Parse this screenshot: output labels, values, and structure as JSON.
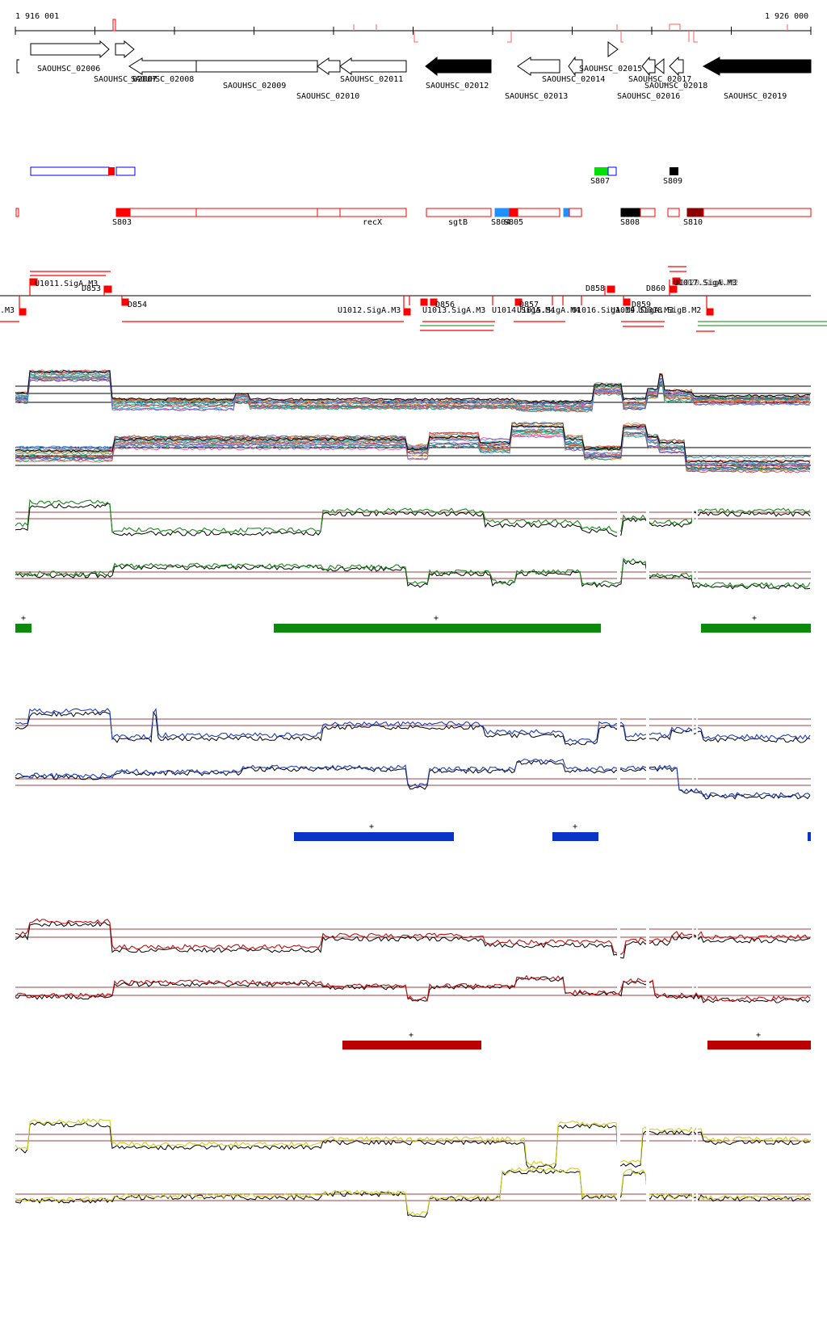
{
  "coordinates": {
    "start_label": "1 916 001",
    "end_label": "1 926 000"
  },
  "genes": [
    {
      "label": "SAOUHSC_02006"
    },
    {
      "label": "SAOUHSC_02007"
    },
    {
      "label": "SAOUHSC_02008"
    },
    {
      "label": "SAOUHSC_02009"
    },
    {
      "label": "SAOUHSC_02010"
    },
    {
      "label": "SAOUHSC_02011"
    },
    {
      "label": "SAOUHSC_02012"
    },
    {
      "label": "SAOUHSC_02013"
    },
    {
      "label": "SAOUHSC_02014"
    },
    {
      "label": "SAOUHSC_02015"
    },
    {
      "label": "SAOUHSC_02016"
    },
    {
      "label": "SAOUHSC_02017"
    },
    {
      "label": "SAOUHSC_02018"
    },
    {
      "label": "SAOUHSC_02019"
    }
  ],
  "segments_top": [
    {
      "label": "S807"
    },
    {
      "label": "S809"
    }
  ],
  "segments_bottom": [
    {
      "label": "S803"
    },
    {
      "label": "recX"
    },
    {
      "label": "sgtB"
    },
    {
      "label": "S804"
    },
    {
      "label": "S805"
    },
    {
      "label": "S808"
    },
    {
      "label": "S810"
    }
  ],
  "upstream_labels": [
    {
      "label": "U1011.SigA.M3"
    },
    {
      "label": "D853"
    },
    {
      "label": "D854"
    },
    {
      "label": ".M3"
    },
    {
      "label": "U1012.SigA.M3"
    },
    {
      "label": "D856"
    },
    {
      "label": "U1013.SigA.M3"
    },
    {
      "label": "D857"
    },
    {
      "label": "U1014.SigA.M4"
    },
    {
      "label": "U1015.SigA.M4"
    },
    {
      "label": "U1016.SigA.M4"
    },
    {
      "label": "D858"
    },
    {
      "label": "D859"
    },
    {
      "label": "U1019.SigA.M3"
    },
    {
      "label": "D860"
    },
    {
      "label": "U1017.SigA.M3"
    },
    {
      "label": "U1018.SigB.M2"
    },
    {
      "label": "U1020.SigB.M2"
    }
  ],
  "enrichment_bars": [
    {
      "name": "green",
      "marks": [
        "+",
        "+",
        "+"
      ]
    },
    {
      "name": "blue",
      "marks": [
        "+",
        "+"
      ]
    },
    {
      "name": "red",
      "marks": [
        "+",
        "+"
      ]
    }
  ],
  "colors": {
    "gene_outline": "#000000",
    "gene_strong": "#000000",
    "feature_red": "#ff0000",
    "feature_blue": "#0000ff",
    "feature_green": "#00cc00",
    "feature_lightblue": "#1e90ff",
    "feature_darkred": "#8b0000",
    "track_green": "#1a8a1a",
    "track_blue": "#1f3fbf",
    "track_red": "#c01010",
    "track_yellow": "#d8d820",
    "reference_line": "#a04040",
    "bar_green": "#0b8a0b",
    "bar_blue": "#0a33c8",
    "bar_red": "#bb0000"
  }
}
